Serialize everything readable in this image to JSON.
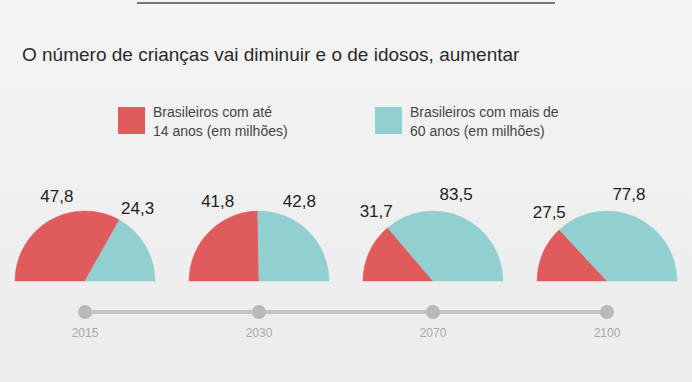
{
  "chart_data": {
    "type": "pie",
    "title": "O número de crianças vai diminuir e o de idosos, aumentar",
    "categories": [
      "2015",
      "2030",
      "2070",
      "2100"
    ],
    "series": [
      {
        "name": "Brasileiros com até 14 anos (em milhões)",
        "color": "#e05b5b",
        "values": [
          47.8,
          41.8,
          31.7,
          27.5
        ],
        "value_labels": [
          "47,8",
          "41,8",
          "31,7",
          "27,5"
        ]
      },
      {
        "name": "Brasileiros com mais de 60 anos (em milhões)",
        "color": "#92cfd0",
        "values": [
          24.3,
          42.8,
          83.5,
          77.8
        ],
        "value_labels": [
          "24,3",
          "42,8",
          "83,5",
          "77,8"
        ]
      }
    ],
    "data_labels": true,
    "legend": "top"
  }
}
